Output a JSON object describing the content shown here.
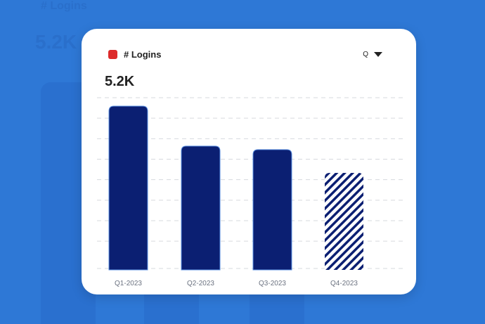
{
  "chart_data": {
    "type": "bar",
    "title": "# Logins",
    "headline": "5.2K",
    "period_selector": "Q",
    "categories": [
      "Q1-2023",
      "Q2-2023",
      "Q3-2023",
      "Q4-2023"
    ],
    "values": [
      5200,
      3930,
      3820,
      3080
    ],
    "projected": [
      false,
      false,
      false,
      true
    ],
    "ylim": [
      0,
      5450
    ],
    "grid": true,
    "colors": {
      "bar": "#0b1f72",
      "legend": "#dd2a2a"
    }
  }
}
